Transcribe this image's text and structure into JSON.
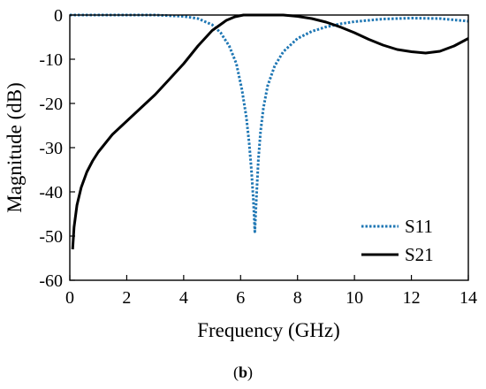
{
  "chart_data": {
    "type": "line",
    "xlabel": "Frequency (GHz)",
    "ylabel": "Magnitude (dB)",
    "xlim": [
      0,
      14
    ],
    "ylim": [
      -60,
      0
    ],
    "xticks": [
      0,
      2,
      4,
      6,
      8,
      10,
      12,
      14
    ],
    "yticks": [
      0,
      -10,
      -20,
      -30,
      -40,
      -50,
      -60
    ],
    "grid": false,
    "legend_position": "bottom-right",
    "series": [
      {
        "name": "S11",
        "style": "dotted",
        "color": "#1f77b4",
        "x": [
          0.0,
          1.0,
          2.0,
          3.0,
          4.0,
          4.5,
          5.0,
          5.3,
          5.6,
          5.85,
          6.05,
          6.2,
          6.3,
          6.38,
          6.45,
          6.5,
          6.55,
          6.62,
          6.7,
          6.8,
          6.95,
          7.2,
          7.5,
          8.0,
          8.5,
          9.0,
          9.5,
          10.0,
          11.0,
          12.0,
          13.0,
          14.0
        ],
        "y": [
          0,
          0,
          0,
          0,
          -0.3,
          -0.8,
          -2.2,
          -4.0,
          -7.0,
          -11.0,
          -17.0,
          -23.0,
          -29.0,
          -35.0,
          -42.0,
          -49.0,
          -42.0,
          -33.0,
          -26.5,
          -21.0,
          -16.0,
          -11.5,
          -8.3,
          -5.3,
          -3.7,
          -2.7,
          -2.0,
          -1.5,
          -0.9,
          -0.7,
          -0.8,
          -1.4
        ]
      },
      {
        "name": "S21",
        "style": "solid",
        "color": "#000000",
        "x": [
          0.1,
          0.15,
          0.25,
          0.4,
          0.6,
          0.8,
          1.0,
          1.5,
          2.0,
          2.5,
          3.0,
          3.5,
          4.0,
          4.5,
          5.0,
          5.5,
          5.8,
          6.1,
          6.5,
          7.0,
          7.5,
          8.0,
          8.5,
          9.0,
          9.5,
          10.0,
          10.5,
          11.0,
          11.5,
          12.0,
          12.5,
          13.0,
          13.5,
          14.0
        ],
        "y": [
          -53.0,
          -48.0,
          -43.0,
          -39.0,
          -35.5,
          -33.0,
          -31.0,
          -27.0,
          -24.0,
          -21.0,
          -18.0,
          -14.5,
          -11.0,
          -7.0,
          -3.5,
          -1.2,
          -0.4,
          0.0,
          0.0,
          0.0,
          0.0,
          -0.3,
          -0.8,
          -1.6,
          -2.7,
          -4.0,
          -5.5,
          -6.8,
          -7.8,
          -8.3,
          -8.6,
          -8.2,
          -7.0,
          -5.3
        ]
      }
    ]
  },
  "caption": {
    "prefix": "(",
    "letter": "b",
    "suffix": ")"
  }
}
